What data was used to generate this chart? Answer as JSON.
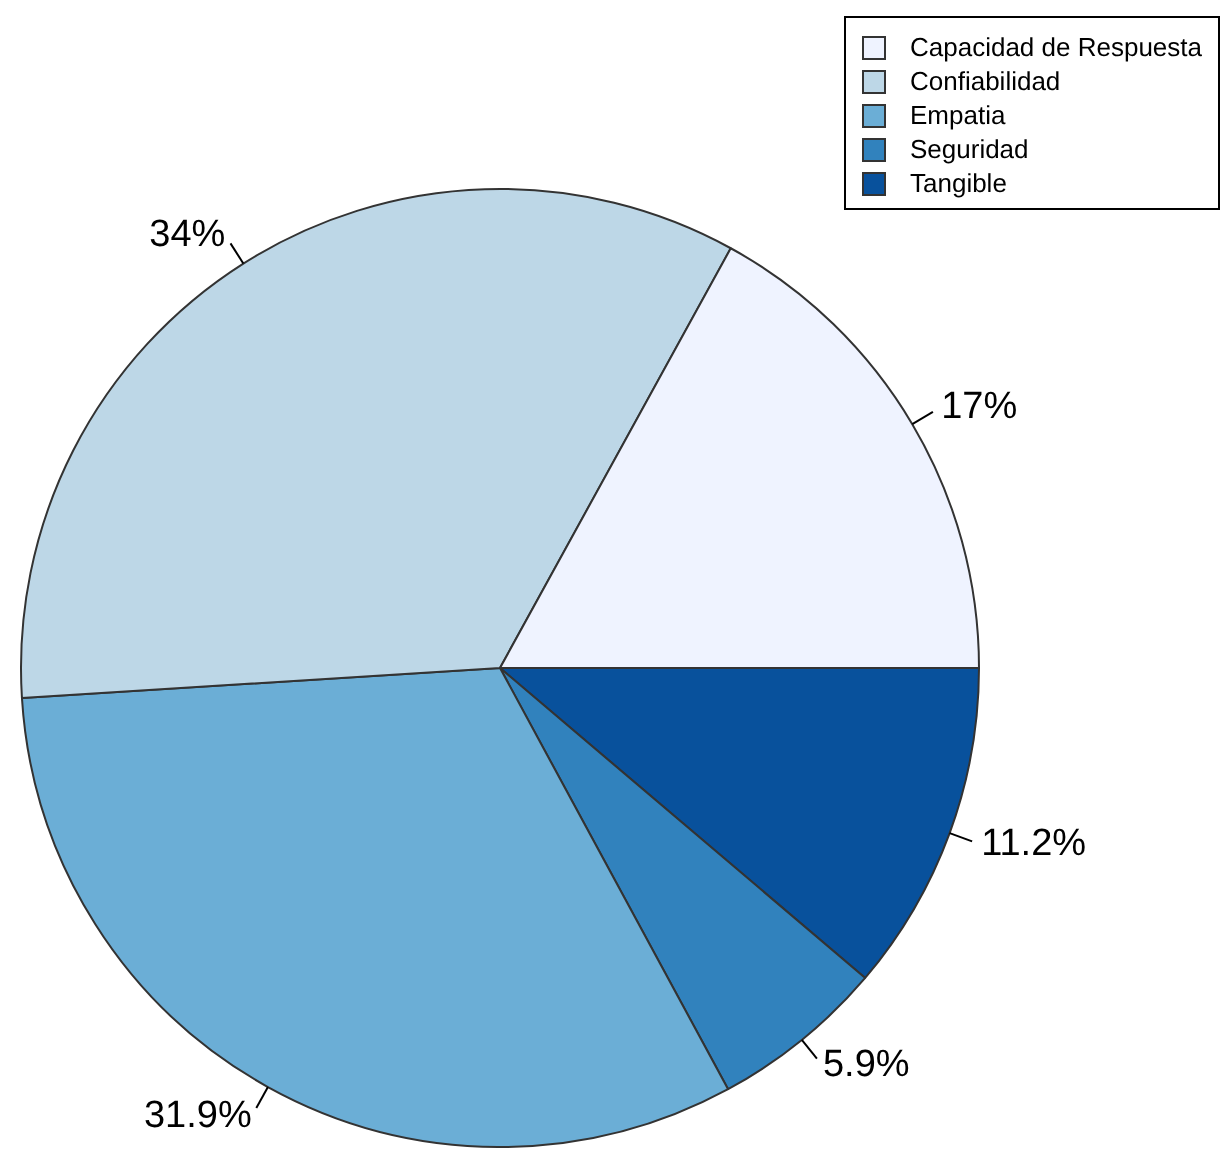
{
  "chart_data": {
    "type": "pie",
    "categories": [
      "Capacidad de Respuesta",
      "Confiabilidad",
      "Empatia",
      "Seguridad",
      "Tangible"
    ],
    "values": [
      17,
      34,
      31.9,
      5.9,
      11.2
    ],
    "colors": [
      "#eff3ff",
      "#bdd7e7",
      "#6baed6",
      "#3182bd",
      "#08519c"
    ],
    "value_labels": [
      "17%",
      "34%",
      "31.9%",
      "5.9%",
      "11.2%"
    ],
    "legend": "top right"
  }
}
